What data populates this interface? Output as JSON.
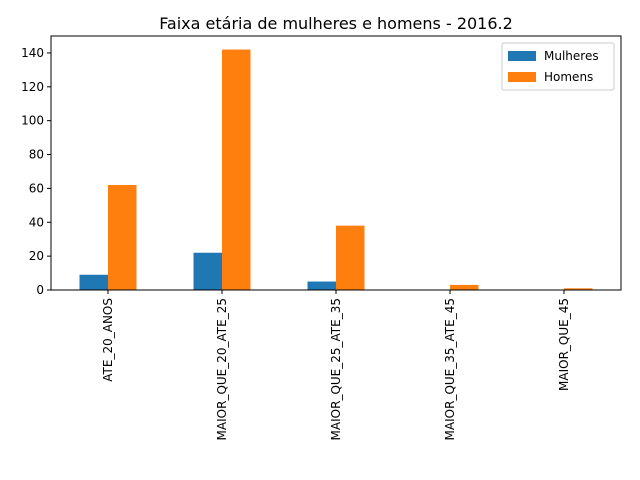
{
  "chart_data": {
    "type": "bar",
    "title": "Faixa etária de mulheres e homens - 2016.2",
    "xlabel": "",
    "ylabel": "",
    "categories": [
      "ATE_20_ANOS",
      "MAIOR_QUE_20_ATE_25",
      "MAIOR_QUE_25_ATE_35",
      "MAIOR_QUE_35_ATE_45",
      "MAIOR_QUE_45"
    ],
    "series": [
      {
        "name": "Mulheres",
        "color": "#1f77b4",
        "values": [
          9,
          22,
          5,
          0,
          0
        ]
      },
      {
        "name": "Homens",
        "color": "#ff7f0e",
        "values": [
          62,
          142,
          38,
          3,
          1
        ]
      }
    ],
    "ylim": [
      0,
      150
    ],
    "yticks": [
      0,
      20,
      40,
      60,
      80,
      100,
      120,
      140
    ],
    "grid": false,
    "legend_position": "top-right"
  }
}
